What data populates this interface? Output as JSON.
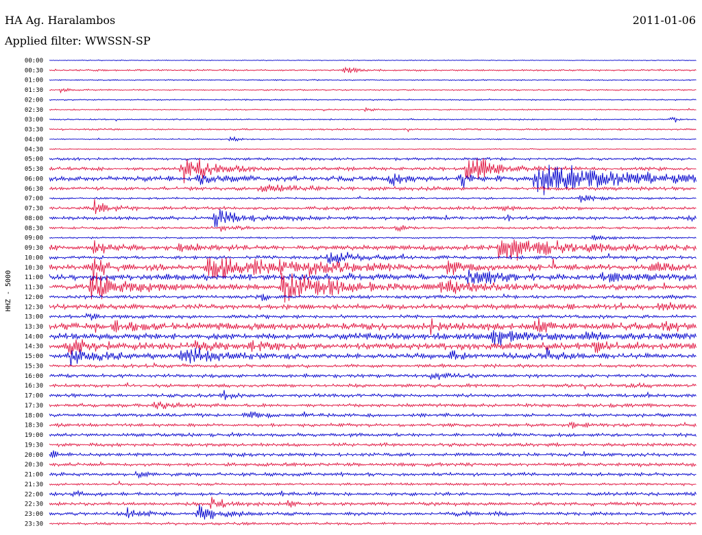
{
  "header": {
    "station": "HA Ag. Haralambos",
    "filter": "Applied filter: WWSSN-SP",
    "date": "2011-01-06"
  },
  "chart_data": {
    "type": "line",
    "title": "HA Ag. Haralambos",
    "subtitle": "Applied filter: WWSSN-SP",
    "date": "2011-01-06",
    "ylabel": "HHZ - 5000",
    "xlabel": "",
    "row_labels": [
      "00:00",
      "00:30",
      "01:00",
      "01:30",
      "02:00",
      "02:30",
      "03:00",
      "03:30",
      "04:00",
      "04:30",
      "05:00",
      "05:30",
      "06:00",
      "06:30",
      "07:00",
      "07:30",
      "08:00",
      "08:30",
      "09:00",
      "09:30",
      "10:00",
      "10:30",
      "11:00",
      "11:30",
      "12:00",
      "12:30",
      "13:00",
      "13:30",
      "14:00",
      "14:30",
      "15:00",
      "15:30",
      "16:00",
      "16:30",
      "17:00",
      "17:30",
      "18:00",
      "18:30",
      "19:00",
      "19:30",
      "20:00",
      "20:30",
      "21:00",
      "21:30",
      "22:00",
      "22:30",
      "23:00",
      "23:30"
    ],
    "row_duration_minutes": 30,
    "colors": [
      "#0000cc",
      "#e0103c"
    ],
    "noise_levels": [
      0.5,
      1,
      0.7,
      0.8,
      0.8,
      0.7,
      0.8,
      1,
      0.7,
      0.7,
      1.5,
      2,
      3,
      2,
      1.2,
      2,
      2,
      1.5,
      1,
      3,
      2,
      3.5,
      3.5,
      3,
      2,
      3,
      2,
      4,
      3.5,
      4,
      3,
      2,
      2,
      2,
      2,
      2,
      2,
      2,
      2,
      2,
      2,
      2,
      2,
      1.5,
      2,
      2,
      2,
      1.5
    ],
    "events": [
      {
        "row": 1,
        "t": 0.455,
        "amp": 7,
        "dur": 0.02
      },
      {
        "row": 3,
        "t": 0.018,
        "amp": 9,
        "dur": 0.008
      },
      {
        "row": 5,
        "t": 0.49,
        "amp": 4,
        "dur": 0.01
      },
      {
        "row": 6,
        "t": 0.96,
        "amp": 10,
        "dur": 0.008
      },
      {
        "row": 8,
        "t": 0.28,
        "amp": 5,
        "dur": 0.012
      },
      {
        "row": 11,
        "t": 0.205,
        "amp": 30,
        "dur": 0.04
      },
      {
        "row": 11,
        "t": 0.645,
        "amp": 32,
        "dur": 0.035
      },
      {
        "row": 12,
        "t": 0.225,
        "amp": 12,
        "dur": 0.03
      },
      {
        "row": 12,
        "t": 0.525,
        "amp": 12,
        "dur": 0.02
      },
      {
        "row": 12,
        "t": 0.635,
        "amp": 12,
        "dur": 0.02
      },
      {
        "row": 12,
        "t": 0.75,
        "amp": 30,
        "dur": 0.12
      },
      {
        "row": 13,
        "t": 0.325,
        "amp": 12,
        "dur": 0.04
      },
      {
        "row": 14,
        "t": 0.82,
        "amp": 8,
        "dur": 0.02
      },
      {
        "row": 15,
        "t": 0.07,
        "amp": 14,
        "dur": 0.02
      },
      {
        "row": 15,
        "t": 0.7,
        "amp": 6,
        "dur": 0.01
      },
      {
        "row": 16,
        "t": 0.255,
        "amp": 14,
        "dur": 0.05
      },
      {
        "row": 16,
        "t": 0.71,
        "amp": 6,
        "dur": 0.01
      },
      {
        "row": 16,
        "t": 0.985,
        "amp": 10,
        "dur": 0.008
      },
      {
        "row": 17,
        "t": 0.265,
        "amp": 8,
        "dur": 0.02
      },
      {
        "row": 17,
        "t": 0.535,
        "amp": 8,
        "dur": 0.01
      },
      {
        "row": 18,
        "t": 0.84,
        "amp": 8,
        "dur": 0.02
      },
      {
        "row": 19,
        "t": 0.07,
        "amp": 12,
        "dur": 0.02
      },
      {
        "row": 19,
        "t": 0.2,
        "amp": 8,
        "dur": 0.02
      },
      {
        "row": 19,
        "t": 0.695,
        "amp": 22,
        "dur": 0.1
      },
      {
        "row": 20,
        "t": 0.43,
        "amp": 14,
        "dur": 0.04
      },
      {
        "row": 21,
        "t": 0.065,
        "amp": 22,
        "dur": 0.02
      },
      {
        "row": 21,
        "t": 0.245,
        "amp": 22,
        "dur": 0.1
      },
      {
        "row": 21,
        "t": 0.4,
        "amp": 12,
        "dur": 0.04
      },
      {
        "row": 21,
        "t": 0.615,
        "amp": 12,
        "dur": 0.02
      },
      {
        "row": 21,
        "t": 0.93,
        "amp": 8,
        "dur": 0.03
      },
      {
        "row": 22,
        "t": 0.645,
        "amp": 20,
        "dur": 0.04
      },
      {
        "row": 22,
        "t": 0.85,
        "amp": 8,
        "dur": 0.06
      },
      {
        "row": 23,
        "t": 0.065,
        "amp": 25,
        "dur": 0.05
      },
      {
        "row": 23,
        "t": 0.36,
        "amp": 25,
        "dur": 0.08
      },
      {
        "row": 23,
        "t": 0.6,
        "amp": 10,
        "dur": 0.12
      },
      {
        "row": 24,
        "t": 0.33,
        "amp": 14,
        "dur": 0.01
      },
      {
        "row": 25,
        "t": 0.94,
        "amp": 8,
        "dur": 0.03
      },
      {
        "row": 26,
        "t": 0.06,
        "amp": 10,
        "dur": 0.01
      },
      {
        "row": 27,
        "t": 0.1,
        "amp": 10,
        "dur": 0.02
      },
      {
        "row": 27,
        "t": 0.59,
        "amp": 10,
        "dur": 0.02
      },
      {
        "row": 27,
        "t": 0.75,
        "amp": 14,
        "dur": 0.03
      },
      {
        "row": 27,
        "t": 0.95,
        "amp": 8,
        "dur": 0.02
      },
      {
        "row": 28,
        "t": 0.68,
        "amp": 14,
        "dur": 0.06
      },
      {
        "row": 28,
        "t": 0.83,
        "amp": 6,
        "dur": 0.04
      },
      {
        "row": 29,
        "t": 0.03,
        "amp": 10,
        "dur": 0.04
      },
      {
        "row": 29,
        "t": 0.22,
        "amp": 8,
        "dur": 0.03
      },
      {
        "row": 29,
        "t": 0.31,
        "amp": 10,
        "dur": 0.03
      },
      {
        "row": 29,
        "t": 0.84,
        "amp": 10,
        "dur": 0.02
      },
      {
        "row": 30,
        "t": 0.03,
        "amp": 14,
        "dur": 0.05
      },
      {
        "row": 30,
        "t": 0.205,
        "amp": 22,
        "dur": 0.04
      },
      {
        "row": 30,
        "t": 0.62,
        "amp": 8,
        "dur": 0.02
      },
      {
        "row": 30,
        "t": 0.77,
        "amp": 14,
        "dur": 0.02
      },
      {
        "row": 32,
        "t": 0.59,
        "amp": 10,
        "dur": 0.02
      },
      {
        "row": 33,
        "t": 0.9,
        "amp": 6,
        "dur": 0.01
      },
      {
        "row": 34,
        "t": 0.27,
        "amp": 10,
        "dur": 0.01
      },
      {
        "row": 35,
        "t": 0.165,
        "amp": 10,
        "dur": 0.02
      },
      {
        "row": 36,
        "t": 0.3,
        "amp": 10,
        "dur": 0.02
      },
      {
        "row": 37,
        "t": 0.8,
        "amp": 6,
        "dur": 0.02
      },
      {
        "row": 40,
        "t": 0.005,
        "amp": 6,
        "dur": 0.01
      },
      {
        "row": 42,
        "t": 0.135,
        "amp": 8,
        "dur": 0.01
      },
      {
        "row": 44,
        "t": 0.04,
        "amp": 8,
        "dur": 0.01
      },
      {
        "row": 44,
        "t": 0.36,
        "amp": 6,
        "dur": 0.01
      },
      {
        "row": 45,
        "t": 0.25,
        "amp": 14,
        "dur": 0.02
      },
      {
        "row": 45,
        "t": 0.37,
        "amp": 6,
        "dur": 0.01
      },
      {
        "row": 46,
        "t": 0.12,
        "amp": 10,
        "dur": 0.02
      },
      {
        "row": 46,
        "t": 0.23,
        "amp": 14,
        "dur": 0.03
      },
      {
        "row": 46,
        "t": 0.63,
        "amp": 6,
        "dur": 0.01
      },
      {
        "row": 46,
        "t": 0.69,
        "amp": 8,
        "dur": 0.01
      }
    ]
  }
}
